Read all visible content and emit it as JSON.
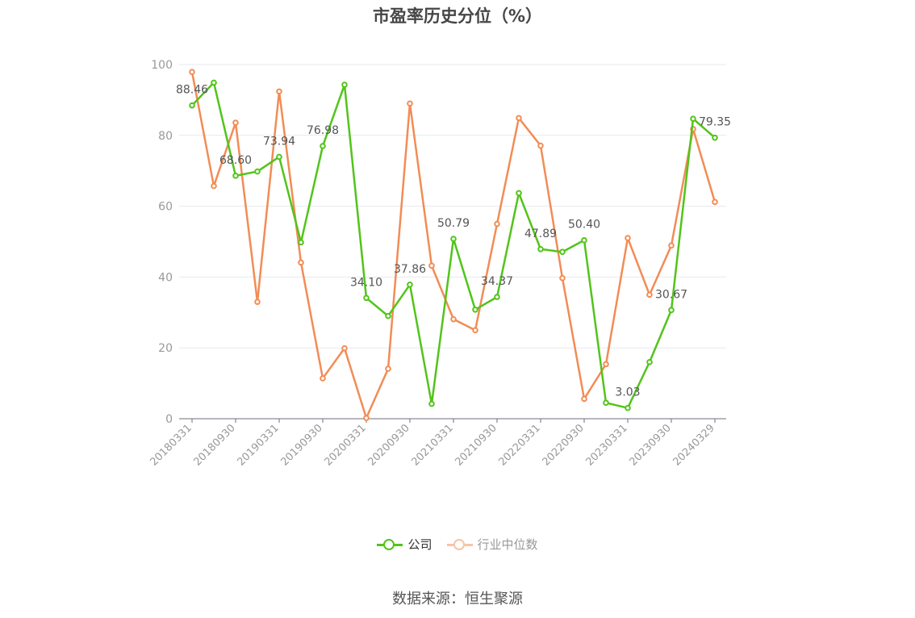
{
  "chart_data": {
    "type": "line",
    "title": "市盈率历史分位（%）",
    "source": "数据来源：恒生聚源",
    "ylim": [
      0,
      100
    ],
    "yticks": [
      0,
      20,
      40,
      60,
      80,
      100
    ],
    "grid": true,
    "legend_position": "bottom-center",
    "x_tick_labels": [
      "20180331",
      "20180930",
      "20190331",
      "20190930",
      "20200331",
      "20200930",
      "20210331",
      "20210930",
      "20220331",
      "20220930",
      "20230331",
      "20230930",
      "20240329"
    ],
    "x": [
      "20180331",
      "20180630",
      "20180930",
      "20181231",
      "20190331",
      "20190630",
      "20190930",
      "20191231",
      "20200331",
      "20200630",
      "20200930",
      "20201231",
      "20210331",
      "20210630",
      "20210930",
      "20211231",
      "20220331",
      "20220630",
      "20220930",
      "20221231",
      "20230331",
      "20230630",
      "20230930",
      "20231231",
      "20240329"
    ],
    "series": [
      {
        "name": "公司",
        "color": "#52c41a",
        "values": [
          88.46,
          94.9,
          68.6,
          69.8,
          73.94,
          49.8,
          76.98,
          94.3,
          34.1,
          29.0,
          37.86,
          4.2,
          50.79,
          30.8,
          34.37,
          63.7,
          47.89,
          47.1,
          50.4,
          4.5,
          3.03,
          16.0,
          30.67,
          84.7,
          79.35
        ],
        "labels": {
          "0": "88.46",
          "2": "68.60",
          "4": "73.94",
          "6": "76.98",
          "8": "34.10",
          "10": "37.86",
          "12": "50.79",
          "14": "34.37",
          "16": "47.89",
          "18": "50.40",
          "20": "3.03",
          "22": "30.67",
          "24": "79.35"
        }
      },
      {
        "name": "行业中位数",
        "color": "#f28c55",
        "values": [
          97.9,
          65.7,
          83.6,
          33.0,
          92.4,
          44.1,
          11.4,
          19.9,
          0.2,
          14.1,
          89.0,
          43.2,
          28.1,
          25.0,
          55.0,
          84.9,
          77.1,
          39.7,
          5.6,
          15.4,
          51.0,
          35.0,
          48.9,
          81.8,
          61.2
        ]
      }
    ]
  }
}
